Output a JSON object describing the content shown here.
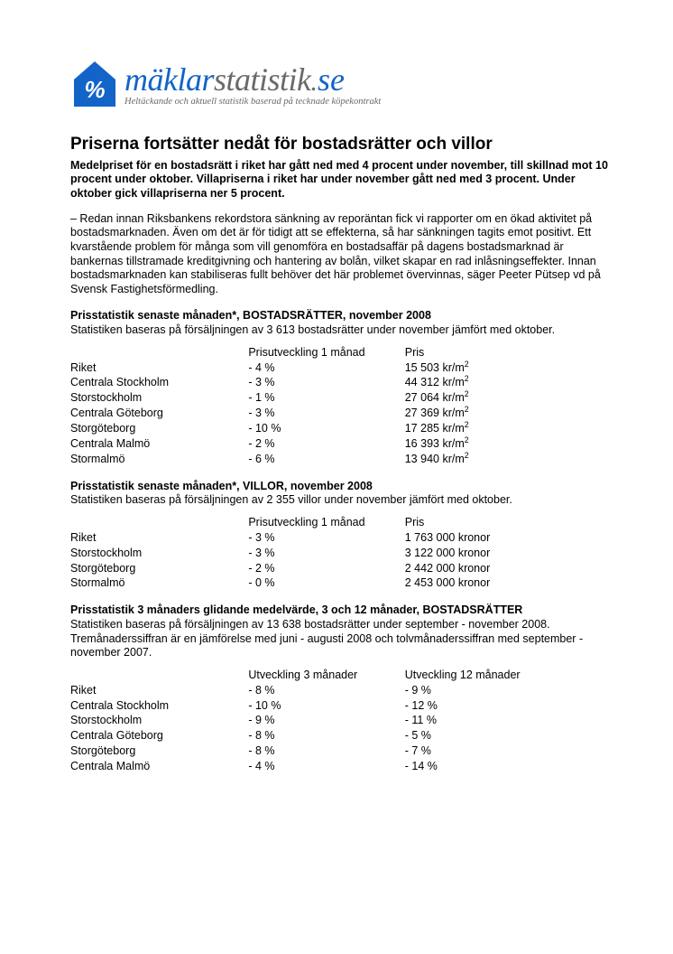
{
  "logo": {
    "maklar": "mäklar",
    "statistik": "statistik",
    "dot": ".",
    "se": "se",
    "tagline": "Heltäckande och aktuell statistik baserad på tecknade köpekontrakt",
    "icon_color": "#1264c8",
    "icon_symbol": "%"
  },
  "title": "Priserna fortsätter nedåt för bostadsrätter och villor",
  "lead": "Medelpriset för en bostadsrätt i riket har gått ned med 4 procent under november, till skillnad mot 10 procent under oktober. Villapriserna i riket har under november gått ned med 3 procent. Under oktober gick villapriserna ner 5 procent.",
  "body": "– Redan innan Riksbankens rekordstora sänkning av reporäntan fick vi rapporter om en ökad aktivitet på bostadsmarknaden. Även om det är för tidigt att se effekterna, så har sänkningen tagits emot positivt. Ett kvarstående problem för många som vill genomföra en bostadsaffär på dagens bostadsmarknad är bankernas tillstramade kreditgivning och hantering av bolån, vilket skapar en rad inlåsningseffekter. Innan bostadsmarknaden kan stabiliseras fullt behöver det här problemet övervinnas, säger Peeter Pütsep vd på Svensk Fastighetsförmedling.",
  "tables": {
    "t1": {
      "heading": "Prisstatistik senaste månaden*, BOSTADSRÄTTER, november 2008",
      "sub": "Statistiken baseras på försäljningen av 3 613 bostadsrätter under november jämfört med oktober.",
      "col_widths": [
        "33%",
        "29%",
        "38%"
      ],
      "col0": "",
      "col1": "Prisutveckling 1 månad",
      "col2": "Pris",
      "price_unit_prefix": " kr/m",
      "price_unit_sup": "2",
      "rows": [
        {
          "region": "Riket",
          "dev": "- 4 %",
          "price": "15 503"
        },
        {
          "region": "Centrala Stockholm",
          "dev": "- 3 %",
          "price": "44 312"
        },
        {
          "region": "Storstockholm",
          "dev": "- 1 %",
          "price": "27 064"
        },
        {
          "region": "Centrala Göteborg",
          "dev": "- 3 %",
          "price": "27 369"
        },
        {
          "region": "Storgöteborg",
          "dev": "- 10 %",
          "price": "17 285"
        },
        {
          "region": "Centrala Malmö",
          "dev": "- 2 %",
          "price": "16 393"
        },
        {
          "region": "Stormalmö",
          "dev": "- 6 %",
          "price": "13 940"
        }
      ]
    },
    "t2": {
      "heading": "Prisstatistik senaste månaden*, VILLOR, november 2008",
      "sub": "Statistiken baseras på försäljningen av 2 355 villor under november jämfört med oktober.",
      "col_widths": [
        "33%",
        "29%",
        "38%"
      ],
      "col0": "",
      "col1": "Prisutveckling 1 månad",
      "col2": "Pris",
      "price_unit": " kronor",
      "rows": [
        {
          "region": "Riket",
          "dev": "- 3 %",
          "price": "1 763 000"
        },
        {
          "region": "Storstockholm",
          "dev": "- 3 %",
          "price": "3 122 000"
        },
        {
          "region": "Storgöteborg",
          "dev": "- 2 %",
          "price": "2 442 000"
        },
        {
          "region": "Stormalmö",
          "dev": "- 0 %",
          "price": "2 453 000"
        }
      ]
    },
    "t3": {
      "heading": "Prisstatistik 3 månaders glidande medelvärde, 3 och 12 månader, BOSTADSRÄTTER",
      "sub": "Statistiken baseras på försäljningen av 13 638 bostadsrätter under september - november 2008. Tremånaderssiffran är en jämförelse med juni - augusti 2008 och tolvmånaderssiffran med september - november 2007.",
      "col_widths": [
        "33%",
        "29%",
        "38%"
      ],
      "col0": "",
      "col1": "Utveckling 3 månader",
      "col2": "Utveckling 12 månader",
      "rows": [
        {
          "region": "Riket",
          "dev3": "- 8 %",
          "dev12": "- 9 %"
        },
        {
          "region": "Centrala Stockholm",
          "dev3": "- 10 %",
          "dev12": "- 12 %"
        },
        {
          "region": "Storstockholm",
          "dev3": "- 9 %",
          "dev12": "- 11 %"
        },
        {
          "region": "Centrala Göteborg",
          "dev3": "- 8 %",
          "dev12": "- 5 %"
        },
        {
          "region": "Storgöteborg",
          "dev3": "- 8 %",
          "dev12": "- 7 %"
        },
        {
          "region": "Centrala Malmö",
          "dev3": "- 4 %",
          "dev12": "- 14 %"
        }
      ]
    }
  }
}
